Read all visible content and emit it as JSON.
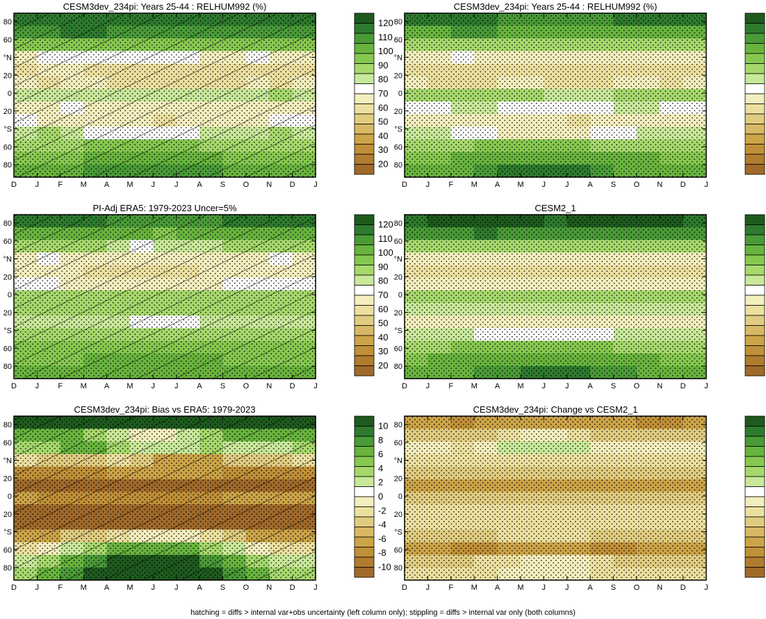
{
  "footer": "hatching = diffs > internal var+obs uncertainty (left column only); stippling = diffs > internal var only (both columns)",
  "colorbars": {
    "absolute": {
      "labels": [
        "120",
        "110",
        "100",
        "90",
        "80",
        "70",
        "60",
        "50",
        "40",
        "30",
        "20"
      ],
      "colors": [
        "#1e5a1e",
        "#2e7a2e",
        "#4a9a38",
        "#68b43e",
        "#86c850",
        "#a6d86c",
        "#c8e89a",
        "#ffffff",
        "#f4eebe",
        "#ece0a0",
        "#e0cc80",
        "#d8b864",
        "#cca448",
        "#c09038",
        "#b07c30",
        "#a06a2a"
      ]
    },
    "difference": {
      "labels": [
        "10",
        "8",
        "6",
        "4",
        "2",
        "0",
        "-2",
        "-4",
        "-6",
        "-8",
        "-10"
      ],
      "colors": [
        "#1e5a1e",
        "#2e7a2e",
        "#4a9a38",
        "#68b43e",
        "#86c850",
        "#a6d86c",
        "#c8e89a",
        "#ffffff",
        "#f4eebe",
        "#ece0a0",
        "#e0cc80",
        "#d8b864",
        "#cca448",
        "#c09038",
        "#b07c30",
        "#a06a2a"
      ]
    }
  },
  "axes": {
    "x_ticks": [
      "D",
      "J",
      "F",
      "M",
      "A",
      "M",
      "J",
      "J",
      "A",
      "S",
      "O",
      "N",
      "D",
      "J"
    ],
    "y_ticks": [
      "80",
      "60",
      "°N",
      "20",
      "0",
      "20",
      "°S",
      "60",
      "80"
    ]
  },
  "chart_data": [
    {
      "type": "heatmap",
      "id": "p1",
      "title": "CESM3dev_234pi: Years 25-44 : RELHUM992 (%)",
      "colorbar": "absolute",
      "rows": [
        [
          118,
          118,
          118,
          118,
          118,
          118,
          118,
          118,
          118,
          118,
          118,
          118,
          118
        ],
        [
          108,
          110,
          112,
          112,
          110,
          108,
          106,
          108,
          110,
          110,
          110,
          110,
          108
        ],
        [
          92,
          92,
          94,
          96,
          96,
          94,
          92,
          92,
          94,
          92,
          92,
          92,
          92
        ],
        [
          70,
          72,
          74,
          76,
          76,
          76,
          74,
          72,
          68,
          70,
          72,
          70,
          70
        ],
        [
          62,
          64,
          64,
          62,
          60,
          58,
          60,
          62,
          60,
          58,
          62,
          62,
          62
        ],
        [
          64,
          62,
          66,
          64,
          62,
          60,
          62,
          62,
          60,
          62,
          64,
          62,
          64
        ],
        [
          82,
          82,
          82,
          82,
          80,
          80,
          80,
          78,
          80,
          82,
          82,
          84,
          82
        ],
        [
          70,
          70,
          72,
          70,
          70,
          70,
          70,
          70,
          70,
          70,
          70,
          70,
          70
        ],
        [
          72,
          70,
          70,
          70,
          70,
          70,
          62,
          68,
          70,
          70,
          70,
          72,
          72
        ],
        [
          82,
          84,
          80,
          76,
          74,
          74,
          74,
          76,
          78,
          82,
          82,
          84,
          82
        ],
        [
          88,
          90,
          90,
          92,
          94,
          94,
          94,
          92,
          90,
          90,
          90,
          88,
          88
        ],
        [
          94,
          94,
          96,
          98,
          100,
          100,
          100,
          100,
          98,
          96,
          96,
          94,
          94
        ],
        [
          100,
          102,
          104,
          106,
          106,
          106,
          106,
          106,
          106,
          104,
          102,
          100,
          100
        ]
      ],
      "hatching": true,
      "stippling": true
    },
    {
      "type": "heatmap",
      "id": "p2",
      "title": "CESM3dev_234pi: Years 25-44 : RELHUM992 (%)",
      "colorbar": "absolute",
      "rows": [
        [
          112,
          114,
          114,
          112,
          110,
          110,
          108,
          110,
          110,
          112,
          112,
          112,
          112
        ],
        [
          104,
          104,
          106,
          106,
          104,
          104,
          102,
          104,
          104,
          104,
          104,
          104,
          104
        ],
        [
          88,
          88,
          90,
          90,
          88,
          88,
          86,
          88,
          88,
          88,
          88,
          88,
          88
        ],
        [
          70,
          70,
          72,
          70,
          70,
          68,
          68,
          70,
          70,
          70,
          70,
          70,
          70
        ],
        [
          62,
          62,
          62,
          62,
          62,
          60,
          60,
          60,
          60,
          62,
          62,
          62,
          62
        ],
        [
          64,
          62,
          62,
          62,
          64,
          64,
          62,
          62,
          62,
          64,
          64,
          62,
          64
        ],
        [
          84,
          84,
          84,
          84,
          84,
          84,
          82,
          82,
          82,
          84,
          84,
          84,
          84
        ],
        [
          76,
          76,
          78,
          78,
          76,
          74,
          74,
          76,
          76,
          78,
          78,
          76,
          76
        ],
        [
          70,
          70,
          70,
          70,
          70,
          70,
          70,
          62,
          70,
          70,
          70,
          70,
          70
        ],
        [
          78,
          80,
          76,
          72,
          70,
          70,
          70,
          70,
          72,
          76,
          78,
          80,
          78
        ],
        [
          88,
          90,
          90,
          92,
          94,
          94,
          94,
          92,
          90,
          90,
          90,
          88,
          88
        ],
        [
          96,
          96,
          98,
          100,
          102,
          102,
          102,
          102,
          100,
          98,
          98,
          96,
          96
        ],
        [
          98,
          100,
          102,
          108,
          112,
          112,
          114,
          112,
          110,
          104,
          100,
          98,
          98
        ]
      ],
      "hatching": false,
      "stippling": true
    },
    {
      "type": "heatmap",
      "id": "p3",
      "title": "PI-Adj ERA5: 1979-2023 Uncer=5%",
      "colorbar": "absolute",
      "rows": [
        [
          112,
          112,
          112,
          112,
          110,
          108,
          108,
          110,
          110,
          112,
          112,
          112,
          112
        ],
        [
          102,
          102,
          104,
          104,
          100,
          98,
          96,
          98,
          100,
          102,
          102,
          102,
          102
        ],
        [
          84,
          86,
          86,
          84,
          80,
          76,
          78,
          80,
          82,
          84,
          84,
          84,
          84
        ],
        [
          70,
          72,
          70,
          68,
          66,
          64,
          66,
          68,
          68,
          70,
          70,
          72,
          70
        ],
        [
          68,
          66,
          64,
          62,
          62,
          60,
          62,
          62,
          64,
          66,
          66,
          66,
          68
        ],
        [
          72,
          72,
          70,
          68,
          66,
          66,
          66,
          68,
          70,
          72,
          72,
          72,
          72
        ],
        [
          86,
          86,
          86,
          86,
          86,
          86,
          86,
          86,
          86,
          86,
          86,
          86,
          86
        ],
        [
          86,
          86,
          86,
          86,
          86,
          86,
          86,
          86,
          86,
          86,
          86,
          86,
          86
        ],
        [
          80,
          80,
          80,
          80,
          78,
          76,
          76,
          76,
          78,
          80,
          80,
          80,
          80
        ],
        [
          86,
          86,
          86,
          84,
          84,
          84,
          84,
          84,
          84,
          86,
          86,
          86,
          86
        ],
        [
          92,
          92,
          92,
          92,
          94,
          94,
          94,
          94,
          92,
          92,
          92,
          92,
          92
        ],
        [
          96,
          96,
          96,
          98,
          98,
          98,
          98,
          98,
          98,
          96,
          96,
          96,
          96
        ],
        [
          98,
          98,
          98,
          98,
          98,
          98,
          98,
          98,
          98,
          98,
          98,
          98,
          98
        ]
      ],
      "hatching": true,
      "stippling": true
    },
    {
      "type": "heatmap",
      "id": "p4",
      "title": "CESM2_1",
      "colorbar": "absolute",
      "rows": [
        [
          118,
          120,
          122,
          122,
          120,
          120,
          118,
          120,
          120,
          120,
          122,
          122,
          118
        ],
        [
          106,
          108,
          110,
          112,
          110,
          108,
          106,
          108,
          110,
          110,
          110,
          110,
          106
        ],
        [
          86,
          88,
          90,
          90,
          88,
          86,
          84,
          86,
          88,
          90,
          90,
          90,
          86
        ],
        [
          68,
          68,
          68,
          66,
          66,
          64,
          64,
          66,
          66,
          66,
          68,
          68,
          68
        ],
        [
          62,
          62,
          62,
          62,
          62,
          62,
          62,
          62,
          62,
          62,
          62,
          62,
          62
        ],
        [
          70,
          70,
          70,
          70,
          70,
          70,
          70,
          70,
          70,
          70,
          70,
          70,
          70
        ],
        [
          84,
          84,
          84,
          84,
          84,
          84,
          84,
          84,
          84,
          84,
          84,
          84,
          84
        ],
        [
          80,
          80,
          80,
          80,
          80,
          80,
          80,
          80,
          80,
          80,
          80,
          80,
          80
        ],
        [
          70,
          70,
          70,
          70,
          70,
          70,
          70,
          70,
          70,
          70,
          70,
          70,
          70
        ],
        [
          80,
          82,
          78,
          74,
          72,
          72,
          72,
          72,
          74,
          78,
          80,
          82,
          80
        ],
        [
          88,
          90,
          92,
          94,
          94,
          94,
          94,
          94,
          92,
          90,
          90,
          88,
          88
        ],
        [
          96,
          98,
          100,
          102,
          104,
          104,
          104,
          104,
          102,
          100,
          98,
          96,
          96
        ],
        [
          98,
          100,
          104,
          108,
          110,
          112,
          112,
          112,
          110,
          106,
          102,
          98,
          98
        ]
      ],
      "hatching": false,
      "stippling": true
    },
    {
      "type": "heatmap",
      "id": "p5",
      "title": "CESM3dev_234pi: Bias vs ERA5: 1979-2023",
      "colorbar": "difference",
      "rows": [
        [
          10,
          10,
          10,
          10,
          10,
          10,
          10,
          10,
          10,
          10,
          10,
          10,
          10
        ],
        [
          6,
          6,
          6,
          4,
          2,
          0,
          0,
          2,
          4,
          6,
          6,
          6,
          6
        ],
        [
          4,
          4,
          6,
          6,
          4,
          2,
          2,
          2,
          4,
          2,
          2,
          2,
          4
        ],
        [
          -2,
          -4,
          -4,
          -4,
          -2,
          -4,
          -6,
          -6,
          -6,
          -4,
          -4,
          -4,
          -2
        ],
        [
          -8,
          -8,
          -8,
          -8,
          -6,
          -6,
          -6,
          -6,
          -6,
          -8,
          -8,
          -8,
          -8
        ],
        [
          -10,
          -10,
          -10,
          -10,
          -10,
          -10,
          -10,
          -10,
          -10,
          -10,
          -10,
          -10,
          -10
        ],
        [
          -6,
          -8,
          -8,
          -8,
          -8,
          -8,
          -8,
          -8,
          -8,
          -6,
          -6,
          -6,
          -6
        ],
        [
          -10,
          -10,
          -10,
          -10,
          -10,
          -10,
          -10,
          -10,
          -10,
          -10,
          -10,
          -10,
          -10
        ],
        [
          -10,
          -10,
          -10,
          -10,
          -10,
          -10,
          -10,
          -10,
          -10,
          -10,
          -10,
          -10,
          -10
        ],
        [
          -6,
          -6,
          -4,
          -4,
          -2,
          0,
          0,
          0,
          -2,
          -4,
          -6,
          -6,
          -6
        ],
        [
          -2,
          0,
          2,
          4,
          6,
          6,
          6,
          6,
          4,
          2,
          0,
          -2,
          -2
        ],
        [
          2,
          4,
          6,
          8,
          10,
          10,
          10,
          10,
          8,
          6,
          4,
          2,
          2
        ],
        [
          4,
          6,
          8,
          10,
          10,
          10,
          10,
          10,
          10,
          8,
          6,
          4,
          4
        ]
      ],
      "hatching": true,
      "stippling": true
    },
    {
      "type": "heatmap",
      "id": "p6",
      "title": "CESM3dev_234pi: Change vs CESM2_1",
      "colorbar": "difference",
      "rows": [
        [
          -6,
          -6,
          -8,
          -6,
          -6,
          -6,
          -6,
          -6,
          -6,
          -6,
          -8,
          -8,
          -6
        ],
        [
          -4,
          -4,
          -4,
          -4,
          -2,
          0,
          0,
          -2,
          -4,
          -4,
          -4,
          -4,
          -4
        ],
        [
          0,
          0,
          -2,
          0,
          2,
          2,
          2,
          2,
          0,
          0,
          0,
          0,
          0
        ],
        [
          -2,
          -2,
          -2,
          -2,
          -2,
          -2,
          -2,
          -2,
          -2,
          -2,
          -2,
          -2,
          -2
        ],
        [
          -4,
          -4,
          -4,
          -4,
          -4,
          -4,
          -4,
          -4,
          -4,
          -4,
          -4,
          -4,
          -4
        ],
        [
          -6,
          -6,
          -6,
          -6,
          -6,
          -6,
          -6,
          -6,
          -6,
          -6,
          -6,
          -6,
          -6
        ],
        [
          -4,
          -4,
          -4,
          -4,
          -4,
          -4,
          -4,
          -4,
          -4,
          -4,
          -4,
          -4,
          -4
        ],
        [
          -2,
          -2,
          -2,
          -2,
          -2,
          -2,
          -2,
          -2,
          -2,
          -2,
          -2,
          -2,
          -2
        ],
        [
          -2,
          -2,
          -2,
          -2,
          -2,
          -2,
          -2,
          -2,
          -2,
          -2,
          -2,
          -2,
          -2
        ],
        [
          -4,
          -4,
          -4,
          -4,
          -2,
          -2,
          -2,
          -2,
          -4,
          -4,
          -4,
          -4,
          -4
        ],
        [
          -6,
          -6,
          -8,
          -8,
          -6,
          -6,
          -6,
          -6,
          -8,
          -8,
          -6,
          -6,
          -6
        ],
        [
          -4,
          -4,
          -4,
          -2,
          -2,
          0,
          0,
          0,
          -2,
          -4,
          -4,
          -4,
          -4
        ],
        [
          -2,
          -2,
          -2,
          -2,
          0,
          0,
          0,
          0,
          -2,
          -2,
          -2,
          -2,
          -2
        ]
      ],
      "hatching": false,
      "stippling": true
    }
  ]
}
